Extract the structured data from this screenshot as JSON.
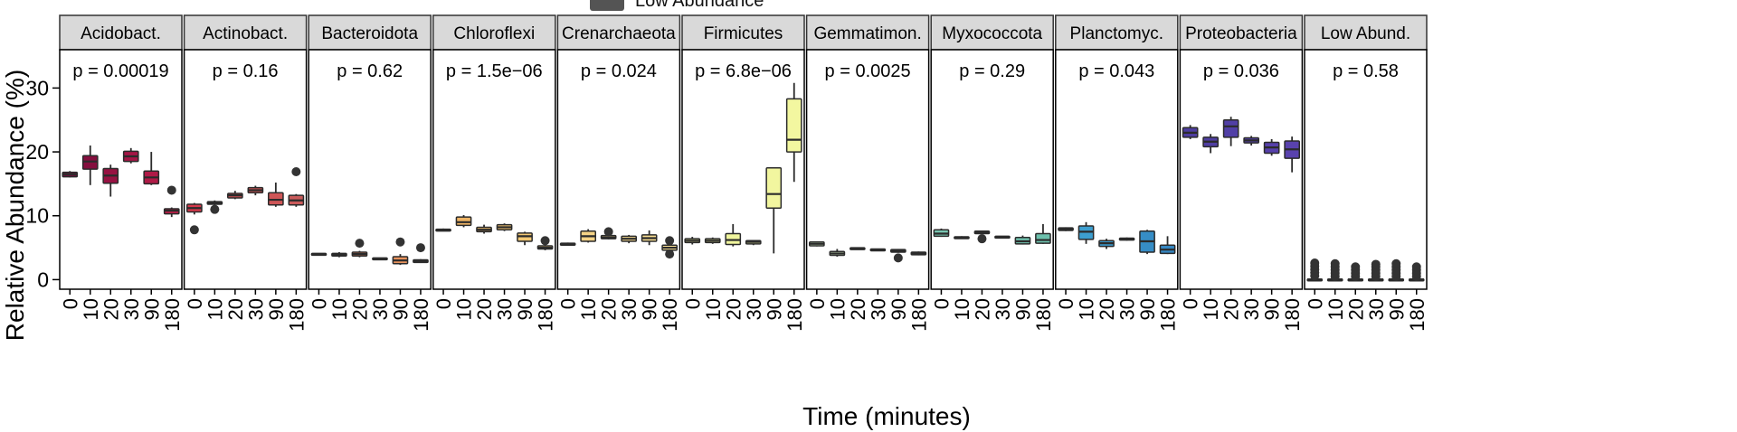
{
  "legend_fragment": {
    "label": "Low Abundance",
    "color": "#545454"
  },
  "chart_data": {
    "type": "box",
    "xlabel": "Time (minutes)",
    "ylabel": "Relative Abundance (%)",
    "ylim": [
      -1.5,
      36
    ],
    "y_ticks": [
      0,
      10,
      20,
      30
    ],
    "x_categories": [
      "0",
      "10",
      "20",
      "30",
      "90",
      "180"
    ],
    "panels": [
      {
        "name": "Acidobact.",
        "p_label": "p = 0.00019",
        "colors": [
          "#6e0e3a",
          "#840f3e",
          "#971242",
          "#a51646",
          "#b01a47",
          "#bd1e49"
        ],
        "boxes": [
          {
            "x": "0",
            "whisker_low": 16.0,
            "q1": 16.1,
            "median": 16.5,
            "q3": 16.8,
            "whisker_high": 17.0,
            "outliers": []
          },
          {
            "x": "10",
            "whisker_low": 14.8,
            "q1": 17.3,
            "median": 18.5,
            "q3": 19.4,
            "whisker_high": 21.0,
            "outliers": []
          },
          {
            "x": "20",
            "whisker_low": 13.0,
            "q1": 15.1,
            "median": 16.3,
            "q3": 17.4,
            "whisker_high": 18.0,
            "outliers": []
          },
          {
            "x": "30",
            "whisker_low": 18.2,
            "q1": 18.5,
            "median": 19.3,
            "q3": 20.1,
            "whisker_high": 20.6,
            "outliers": []
          },
          {
            "x": "90",
            "whisker_low": 14.8,
            "q1": 15.0,
            "median": 16.0,
            "q3": 17.0,
            "whisker_high": 20.0,
            "outliers": []
          },
          {
            "x": "180",
            "whisker_low": 9.8,
            "q1": 10.3,
            "median": 10.8,
            "q3": 11.1,
            "whisker_high": 11.3,
            "outliers": [
              14.0
            ]
          }
        ]
      },
      {
        "name": "Actinobact.",
        "p_label": "p = 0.16",
        "colors": [
          "#d6384b",
          "#d44550",
          "#d24e52",
          "#d05354",
          "#ce5657",
          "#c95a5a"
        ],
        "boxes": [
          {
            "x": "0",
            "whisker_low": 10.2,
            "q1": 10.6,
            "median": 11.2,
            "q3": 11.8,
            "whisker_high": 12.0,
            "outliers": [
              7.8
            ]
          },
          {
            "x": "10",
            "whisker_low": 11.6,
            "q1": 11.8,
            "median": 12.0,
            "q3": 12.2,
            "whisker_high": 12.4,
            "outliers": [
              11.0
            ]
          },
          {
            "x": "20",
            "whisker_low": 12.6,
            "q1": 12.8,
            "median": 13.2,
            "q3": 13.5,
            "whisker_high": 13.9,
            "outliers": []
          },
          {
            "x": "30",
            "whisker_low": 13.2,
            "q1": 13.6,
            "median": 14.0,
            "q3": 14.4,
            "whisker_high": 14.7,
            "outliers": []
          },
          {
            "x": "90",
            "whisker_low": 11.4,
            "q1": 11.7,
            "median": 12.5,
            "q3": 13.6,
            "whisker_high": 15.2,
            "outliers": []
          },
          {
            "x": "180",
            "whisker_low": 11.4,
            "q1": 11.7,
            "median": 12.4,
            "q3": 13.2,
            "whisker_high": 13.4,
            "outliers": [
              16.9
            ]
          }
        ]
      },
      {
        "name": "Bacteroidota",
        "p_label": "p = 0.62",
        "colors": [
          "#e06a50",
          "#e27552",
          "#e47e55",
          "#e68858",
          "#e8925c",
          "#ea9c60"
        ],
        "boxes": [
          {
            "x": "0",
            "whisker_low": 3.8,
            "q1": 3.9,
            "median": 4.0,
            "q3": 4.1,
            "whisker_high": 4.1,
            "outliers": []
          },
          {
            "x": "10",
            "whisker_low": 3.5,
            "q1": 3.7,
            "median": 3.9,
            "q3": 4.1,
            "whisker_high": 4.3,
            "outliers": []
          },
          {
            "x": "20",
            "whisker_low": 3.5,
            "q1": 3.7,
            "median": 4.0,
            "q3": 4.3,
            "whisker_high": 4.5,
            "outliers": [
              5.7
            ]
          },
          {
            "x": "30",
            "whisker_low": 3.1,
            "q1": 3.2,
            "median": 3.3,
            "q3": 3.4,
            "whisker_high": 3.4,
            "outliers": []
          },
          {
            "x": "90",
            "whisker_low": 2.3,
            "q1": 2.5,
            "median": 3.0,
            "q3": 3.6,
            "whisker_high": 4.0,
            "outliers": [
              5.9
            ]
          },
          {
            "x": "180",
            "whisker_low": 2.6,
            "q1": 2.7,
            "median": 2.9,
            "q3": 3.1,
            "whisker_high": 3.2,
            "outliers": [
              5.0
            ]
          }
        ]
      },
      {
        "name": "Chloroflexi",
        "p_label": "p = 1.5e−06",
        "colors": [
          "#ecab60",
          "#eeb465",
          "#efbd6a",
          "#f1c26f",
          "#f3c874",
          "#f4cd79"
        ],
        "boxes": [
          {
            "x": "0",
            "whisker_low": 7.6,
            "q1": 7.7,
            "median": 7.8,
            "q3": 7.9,
            "whisker_high": 8.0,
            "outliers": []
          },
          {
            "x": "10",
            "whisker_low": 8.2,
            "q1": 8.5,
            "median": 9.0,
            "q3": 9.8,
            "whisker_high": 10.1,
            "outliers": []
          },
          {
            "x": "20",
            "whisker_low": 7.2,
            "q1": 7.5,
            "median": 7.8,
            "q3": 8.2,
            "whisker_high": 8.6,
            "outliers": []
          },
          {
            "x": "30",
            "whisker_low": 7.6,
            "q1": 7.8,
            "median": 8.2,
            "q3": 8.6,
            "whisker_high": 8.8,
            "outliers": []
          },
          {
            "x": "90",
            "whisker_low": 5.4,
            "q1": 6.0,
            "median": 6.8,
            "q3": 7.3,
            "whisker_high": 7.5,
            "outliers": []
          },
          {
            "x": "180",
            "whisker_low": 4.6,
            "q1": 4.8,
            "median": 5.0,
            "q3": 5.3,
            "whisker_high": 5.5,
            "outliers": [
              6.1
            ]
          }
        ]
      },
      {
        "name": "Crenarchaeota",
        "p_label": "p = 0.024",
        "colors": [
          "#f4cf82",
          "#f5d386",
          "#f6d78a",
          "#f7da8e",
          "#f8dd91",
          "#f9e094"
        ],
        "boxes": [
          {
            "x": "0",
            "whisker_low": 5.3,
            "q1": 5.4,
            "median": 5.6,
            "q3": 5.7,
            "whisker_high": 5.8,
            "outliers": []
          },
          {
            "x": "10",
            "whisker_low": 5.8,
            "q1": 6.0,
            "median": 6.8,
            "q3": 7.6,
            "whisker_high": 7.9,
            "outliers": []
          },
          {
            "x": "20",
            "whisker_low": 6.3,
            "q1": 6.4,
            "median": 6.6,
            "q3": 6.9,
            "whisker_high": 7.0,
            "outliers": [
              7.5
            ]
          },
          {
            "x": "30",
            "whisker_low": 5.7,
            "q1": 6.0,
            "median": 6.4,
            "q3": 6.8,
            "whisker_high": 7.0,
            "outliers": []
          },
          {
            "x": "90",
            "whisker_low": 5.4,
            "q1": 6.0,
            "median": 6.5,
            "q3": 7.0,
            "whisker_high": 7.7,
            "outliers": []
          },
          {
            "x": "180",
            "whisker_low": 4.4,
            "q1": 4.6,
            "median": 5.0,
            "q3": 5.4,
            "whisker_high": 5.6,
            "outliers": [
              6.1,
              4.0
            ]
          }
        ]
      },
      {
        "name": "Firmicutes",
        "p_label": "p = 6.8e−06",
        "colors": [
          "#eef29a",
          "#eff49c",
          "#f0f59d",
          "#f1f59e",
          "#f2f69f",
          "#f3f7a0"
        ],
        "boxes": [
          {
            "x": "0",
            "whisker_low": 5.5,
            "q1": 5.8,
            "median": 6.1,
            "q3": 6.4,
            "whisker_high": 6.7,
            "outliers": []
          },
          {
            "x": "10",
            "whisker_low": 5.6,
            "q1": 5.8,
            "median": 6.1,
            "q3": 6.4,
            "whisker_high": 6.6,
            "outliers": []
          },
          {
            "x": "20",
            "whisker_low": 5.2,
            "q1": 5.5,
            "median": 6.2,
            "q3": 7.2,
            "whisker_high": 8.7,
            "outliers": []
          },
          {
            "x": "30",
            "whisker_low": 5.4,
            "q1": 5.6,
            "median": 5.9,
            "q3": 6.1,
            "whisker_high": 6.2,
            "outliers": []
          },
          {
            "x": "90",
            "whisker_low": 4.1,
            "q1": 11.2,
            "median": 13.4,
            "q3": 17.5,
            "whisker_high": 17.5,
            "outliers": []
          },
          {
            "x": "180",
            "whisker_low": 15.3,
            "q1": 20.0,
            "median": 21.9,
            "q3": 28.3,
            "whisker_high": 30.8,
            "outliers": []
          }
        ]
      },
      {
        "name": "Gemmatimon.",
        "p_label": "p = 0.0025",
        "colors": [
          "#d2eec0",
          "#cfedc0",
          "#cbebc0",
          "#c7e9c0",
          "#c2e7c0",
          "#bde5c0"
        ],
        "boxes": [
          {
            "x": "0",
            "whisker_low": 5.2,
            "q1": 5.3,
            "median": 5.6,
            "q3": 5.9,
            "whisker_high": 6.0,
            "outliers": []
          },
          {
            "x": "10",
            "whisker_low": 3.6,
            "q1": 3.8,
            "median": 4.1,
            "q3": 4.4,
            "whisker_high": 4.8,
            "outliers": []
          },
          {
            "x": "20",
            "whisker_low": 4.7,
            "q1": 4.8,
            "median": 4.9,
            "q3": 5.0,
            "whisker_high": 5.0,
            "outliers": []
          },
          {
            "x": "30",
            "whisker_low": 4.5,
            "q1": 4.6,
            "median": 4.7,
            "q3": 4.8,
            "whisker_high": 4.8,
            "outliers": []
          },
          {
            "x": "90",
            "whisker_low": 4.2,
            "q1": 4.3,
            "median": 4.5,
            "q3": 4.7,
            "whisker_high": 4.8,
            "outliers": [
              3.4
            ]
          },
          {
            "x": "180",
            "whisker_low": 3.8,
            "q1": 3.9,
            "median": 4.1,
            "q3": 4.3,
            "whisker_high": 4.4,
            "outliers": []
          }
        ]
      },
      {
        "name": "Myxococcota",
        "p_label": "p = 0.29",
        "colors": [
          "#78c6b1",
          "#7cc8b2",
          "#80cab3",
          "#74c4b0",
          "#70c2ae",
          "#6cc0ac"
        ],
        "boxes": [
          {
            "x": "0",
            "whisker_low": 6.7,
            "q1": 6.8,
            "median": 7.2,
            "q3": 7.8,
            "whisker_high": 8.0,
            "outliers": []
          },
          {
            "x": "10",
            "whisker_low": 6.4,
            "q1": 6.5,
            "median": 6.6,
            "q3": 6.7,
            "whisker_high": 6.8,
            "outliers": []
          },
          {
            "x": "20",
            "whisker_low": 7.1,
            "q1": 7.2,
            "median": 7.4,
            "q3": 7.6,
            "whisker_high": 7.7,
            "outliers": [
              6.4
            ]
          },
          {
            "x": "30",
            "whisker_low": 6.5,
            "q1": 6.6,
            "median": 6.7,
            "q3": 6.8,
            "whisker_high": 6.8,
            "outliers": []
          },
          {
            "x": "90",
            "whisker_low": 5.5,
            "q1": 5.6,
            "median": 6.0,
            "q3": 6.6,
            "whisker_high": 6.9,
            "outliers": []
          },
          {
            "x": "180",
            "whisker_low": 5.6,
            "q1": 5.7,
            "median": 6.2,
            "q3": 7.2,
            "whisker_high": 8.7,
            "outliers": []
          }
        ]
      },
      {
        "name": "Planctomyc.",
        "p_label": "p = 0.043",
        "colors": [
          "#3fa4d2",
          "#3d9fd0",
          "#3a99cd",
          "#3893ca",
          "#368dc6",
          "#3487c3"
        ],
        "boxes": [
          {
            "x": "0",
            "whisker_low": 7.6,
            "q1": 7.7,
            "median": 7.9,
            "q3": 8.1,
            "whisker_high": 8.2,
            "outliers": []
          },
          {
            "x": "10",
            "whisker_low": 5.6,
            "q1": 6.3,
            "median": 7.5,
            "q3": 8.4,
            "whisker_high": 9.0,
            "outliers": []
          },
          {
            "x": "20",
            "whisker_low": 4.8,
            "q1": 5.2,
            "median": 5.7,
            "q3": 6.1,
            "whisker_high": 6.4,
            "outliers": []
          },
          {
            "x": "30",
            "whisker_low": 6.1,
            "q1": 6.2,
            "median": 6.4,
            "q3": 6.5,
            "whisker_high": 6.6,
            "outliers": []
          },
          {
            "x": "90",
            "whisker_low": 4.0,
            "q1": 4.3,
            "median": 6.0,
            "q3": 7.6,
            "whisker_high": 7.8,
            "outliers": []
          },
          {
            "x": "180",
            "whisker_low": 4.0,
            "q1": 4.1,
            "median": 4.7,
            "q3": 5.4,
            "whisker_high": 6.8,
            "outliers": []
          }
        ]
      },
      {
        "name": "Proteobacteria",
        "p_label": "p = 0.036",
        "colors": [
          "#4d3d9e",
          "#4f3ea2",
          "#513fa6",
          "#533fa8",
          "#5640ab",
          "#5942ae"
        ],
        "boxes": [
          {
            "x": "0",
            "whisker_low": 22.0,
            "q1": 22.3,
            "median": 23.0,
            "q3": 23.8,
            "whisker_high": 24.2,
            "outliers": []
          },
          {
            "x": "10",
            "whisker_low": 19.8,
            "q1": 20.8,
            "median": 21.6,
            "q3": 22.3,
            "whisker_high": 22.8,
            "outliers": []
          },
          {
            "x": "20",
            "whisker_low": 20.9,
            "q1": 22.3,
            "median": 24.0,
            "q3": 25.0,
            "whisker_high": 25.5,
            "outliers": []
          },
          {
            "x": "30",
            "whisker_low": 21.0,
            "q1": 21.4,
            "median": 21.8,
            "q3": 22.2,
            "whisker_high": 22.5,
            "outliers": []
          },
          {
            "x": "90",
            "whisker_low": 19.4,
            "q1": 19.8,
            "median": 20.7,
            "q3": 21.5,
            "whisker_high": 22.0,
            "outliers": []
          },
          {
            "x": "180",
            "whisker_low": 16.8,
            "q1": 19.0,
            "median": 20.4,
            "q3": 21.7,
            "whisker_high": 22.4,
            "outliers": []
          }
        ]
      },
      {
        "name": "Low Abund.",
        "p_label": "p = 0.58",
        "colors": [
          "#545454",
          "#545454",
          "#545454",
          "#545454",
          "#545454",
          "#545454"
        ],
        "boxes": [
          {
            "x": "0",
            "whisker_low": 0.0,
            "q1": 0.02,
            "median": 0.05,
            "q3": 0.1,
            "whisker_high": 0.2,
            "outliers": [
              0.6,
              1.1,
              1.6,
              2.1,
              2.6
            ]
          },
          {
            "x": "10",
            "whisker_low": 0.0,
            "q1": 0.02,
            "median": 0.05,
            "q3": 0.1,
            "whisker_high": 0.2,
            "outliers": [
              0.5,
              1.0,
              1.5,
              2.0,
              2.5
            ]
          },
          {
            "x": "20",
            "whisker_low": 0.0,
            "q1": 0.02,
            "median": 0.05,
            "q3": 0.1,
            "whisker_high": 0.2,
            "outliers": [
              0.5,
              1.0,
              1.5,
              2.0
            ]
          },
          {
            "x": "30",
            "whisker_low": 0.0,
            "q1": 0.02,
            "median": 0.05,
            "q3": 0.1,
            "whisker_high": 0.2,
            "outliers": [
              0.5,
              1.0,
              1.5,
              2.0,
              2.4
            ]
          },
          {
            "x": "90",
            "whisker_low": 0.0,
            "q1": 0.02,
            "median": 0.05,
            "q3": 0.1,
            "whisker_high": 0.2,
            "outliers": [
              0.5,
              1.0,
              1.5,
              2.0,
              2.5
            ]
          },
          {
            "x": "180",
            "whisker_low": 0.0,
            "q1": 0.02,
            "median": 0.05,
            "q3": 0.1,
            "whisker_high": 0.2,
            "outliers": [
              0.5,
              1.0,
              1.5,
              2.0
            ]
          }
        ]
      }
    ],
    "grid": false,
    "facet_strip_color": "#d9d9d9",
    "axis_color": "#000000"
  }
}
